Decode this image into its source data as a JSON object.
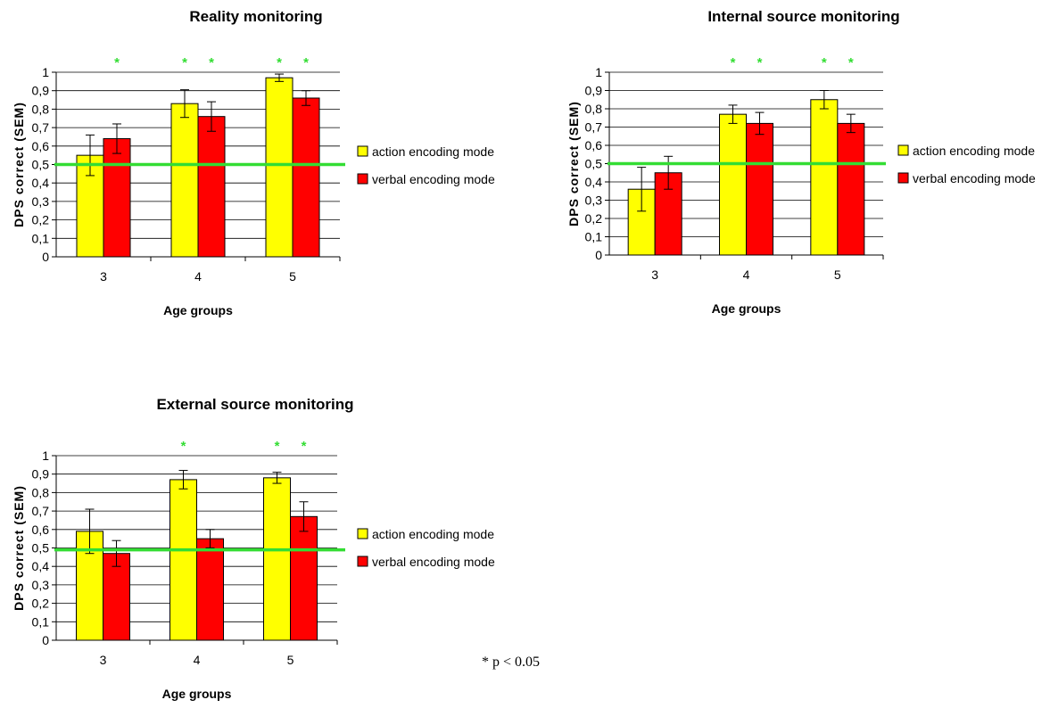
{
  "chart_data": [
    {
      "type": "bar",
      "title": "Reality monitoring",
      "xlabel": "Age groups",
      "ylabel": "DPS correct (SEM)",
      "ylim": [
        0,
        1
      ],
      "yticks": [
        "0",
        "0,1",
        "0,2",
        "0,3",
        "0,4",
        "0,5",
        "0,6",
        "0,7",
        "0,8",
        "0,9",
        "1"
      ],
      "categories": [
        "3",
        "4",
        "5"
      ],
      "series": [
        {
          "name": "action encoding mode",
          "values": [
            0.55,
            0.83,
            0.97
          ],
          "errors": [
            0.11,
            0.075,
            0.02
          ],
          "significant": [
            false,
            true,
            true
          ]
        },
        {
          "name": "verbal encoding mode",
          "values": [
            0.64,
            0.76,
            0.86
          ],
          "errors": [
            0.08,
            0.08,
            0.04
          ],
          "significant": [
            true,
            true,
            true
          ]
        }
      ],
      "reference_line": 0.5,
      "grid": true,
      "legend": "right"
    },
    {
      "type": "bar",
      "title": "Internal source monitoring",
      "xlabel": "Age groups",
      "ylabel": "DPS correct (SEM)",
      "ylim": [
        0,
        1
      ],
      "yticks": [
        "0",
        "0,1",
        "0,2",
        "0,3",
        "0,4",
        "0,5",
        "0,6",
        "0,7",
        "0,8",
        "0,9",
        "1"
      ],
      "categories": [
        "3",
        "4",
        "5"
      ],
      "series": [
        {
          "name": "action encoding mode",
          "values": [
            0.36,
            0.77,
            0.85
          ],
          "errors": [
            0.12,
            0.05,
            0.05
          ],
          "significant": [
            false,
            true,
            true
          ]
        },
        {
          "name": "verbal encoding mode",
          "values": [
            0.45,
            0.72,
            0.72
          ],
          "errors": [
            0.09,
            0.06,
            0.05
          ],
          "significant": [
            false,
            true,
            true
          ]
        }
      ],
      "reference_line": 0.5,
      "grid": true,
      "legend": "right"
    },
    {
      "type": "bar",
      "title": "External source monitoring",
      "xlabel": "Age groups",
      "ylabel": "DPS correct (SEM)",
      "ylim": [
        0,
        1
      ],
      "yticks": [
        "0",
        "0,1",
        "0,2",
        "0,3",
        "0,4",
        "0,5",
        "0,6",
        "0,7",
        "0,8",
        "0,9",
        "1"
      ],
      "categories": [
        "3",
        "4",
        "5"
      ],
      "series": [
        {
          "name": "action encoding mode",
          "values": [
            0.59,
            0.87,
            0.88
          ],
          "errors": [
            0.12,
            0.05,
            0.03
          ],
          "significant": [
            false,
            true,
            true
          ]
        },
        {
          "name": "verbal encoding mode",
          "values": [
            0.47,
            0.55,
            0.67
          ],
          "errors": [
            0.07,
            0.05,
            0.08
          ],
          "significant": [
            false,
            false,
            true
          ]
        }
      ],
      "reference_line": 0.49,
      "grid": true,
      "legend": "right"
    }
  ],
  "footnote": "* p < 0.05",
  "significance_marker": "*",
  "colors": {
    "action": "#ffff00",
    "verbal": "#ff0000",
    "reference_line": "#33dd33",
    "star": "#33dd33",
    "grid": "#000000"
  }
}
